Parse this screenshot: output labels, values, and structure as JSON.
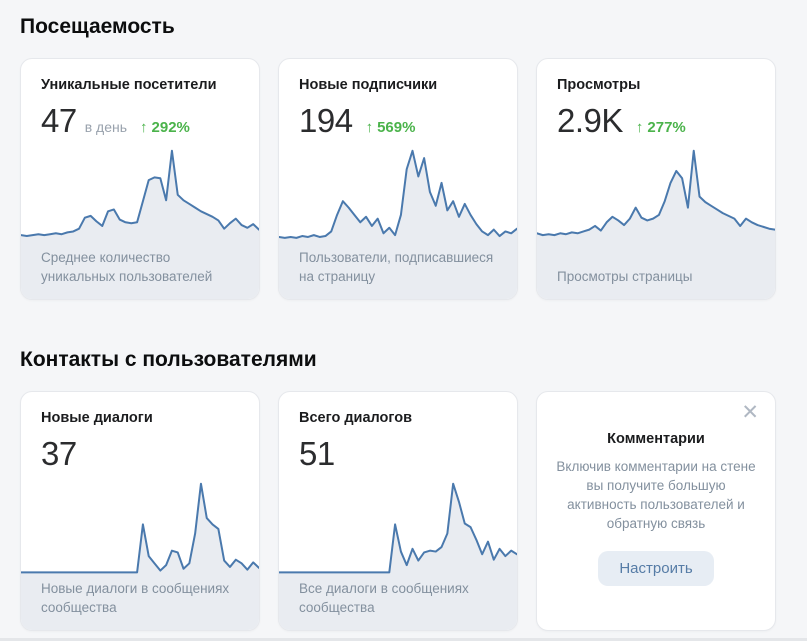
{
  "colors": {
    "page_bg": "#f5f6f8",
    "card_bg": "#ffffff",
    "trend_green": "#4bb34b",
    "chart_line": "#4a79ad",
    "chart_fill": "#e9ecf1",
    "muted_text": "#83909e",
    "button_bg": "#e7edf4",
    "button_text": "#567ca6"
  },
  "sections": [
    {
      "title": "Посещаемость",
      "cards": [
        {
          "title": "Уникальные посетители",
          "value": "47",
          "unit": "в день",
          "trend_arrow": "↑",
          "trend": "292%",
          "caption": "Среднее количество уникальных пользователей"
        },
        {
          "title": "Новые подписчики",
          "value": "194",
          "trend_arrow": "↑",
          "trend": "569%",
          "caption": "Пользователи, подписавшиеся на страницу"
        },
        {
          "title": "Просмотры",
          "value": "2.9K",
          "trend_arrow": "↑",
          "trend": "277%",
          "caption": "Просмотры страницы"
        }
      ]
    },
    {
      "title": "Контакты с пользователями",
      "cards": [
        {
          "title": "Новые диалоги",
          "value": "37",
          "caption": "Новые диалоги в сообщениях сообщества"
        },
        {
          "title": "Всего диалогов",
          "value": "51",
          "caption": "Все диалоги в сообщениях сообщества"
        }
      ],
      "promo": {
        "close_icon": "✕",
        "title": "Комментарии",
        "body": "Включив комментарии на стене вы получите большую активность пользователей и обратную связь",
        "button": "Настроить"
      }
    }
  ],
  "chart_data": [
    {
      "type": "area",
      "name": "Уникальные посетители (спарклайн, значения в % от пика)",
      "values": [
        8,
        7,
        8,
        9,
        8,
        9,
        10,
        9,
        11,
        12,
        15,
        27,
        29,
        23,
        18,
        34,
        36,
        25,
        22,
        21,
        22,
        45,
        68,
        71,
        70,
        46,
        100,
        52,
        46,
        42,
        38,
        34,
        31,
        28,
        24,
        15,
        21,
        26,
        19,
        16,
        20,
        14
      ]
    },
    {
      "type": "area",
      "name": "Новые подписчики (спарклайн, значения в % от пика)",
      "values": [
        6,
        5,
        6,
        5,
        7,
        6,
        8,
        6,
        7,
        12,
        30,
        45,
        38,
        30,
        22,
        28,
        18,
        26,
        10,
        16,
        8,
        30,
        80,
        100,
        72,
        92,
        55,
        40,
        65,
        35,
        45,
        28,
        42,
        30,
        20,
        12,
        8,
        14,
        7,
        12,
        10,
        15
      ]
    },
    {
      "type": "area",
      "name": "Просмотры (спарклайн, значения в % от пика)",
      "values": [
        10,
        8,
        9,
        8,
        10,
        9,
        11,
        10,
        12,
        14,
        18,
        13,
        22,
        28,
        24,
        19,
        26,
        38,
        27,
        24,
        26,
        30,
        45,
        65,
        78,
        70,
        38,
        100,
        50,
        44,
        40,
        36,
        32,
        29,
        26,
        18,
        26,
        22,
        19,
        17,
        15,
        14
      ]
    },
    {
      "type": "area",
      "name": "Новые диалоги (спарклайн, значения в % от пика)",
      "values": [
        2,
        2,
        2,
        2,
        2,
        2,
        2,
        2,
        2,
        2,
        2,
        2,
        2,
        2,
        2,
        2,
        2,
        2,
        2,
        2,
        2,
        55,
        20,
        12,
        4,
        10,
        26,
        24,
        6,
        12,
        45,
        100,
        62,
        55,
        50,
        15,
        8,
        16,
        12,
        5,
        13,
        7
      ]
    },
    {
      "type": "area",
      "name": "Всего диалогов (спарклайн, значения в % от пика)",
      "values": [
        2,
        2,
        2,
        2,
        2,
        2,
        2,
        2,
        2,
        2,
        2,
        2,
        2,
        2,
        2,
        2,
        2,
        2,
        2,
        2,
        55,
        25,
        10,
        28,
        15,
        24,
        26,
        25,
        30,
        45,
        100,
        80,
        56,
        52,
        38,
        22,
        36,
        16,
        28,
        20,
        26,
        22
      ]
    }
  ]
}
